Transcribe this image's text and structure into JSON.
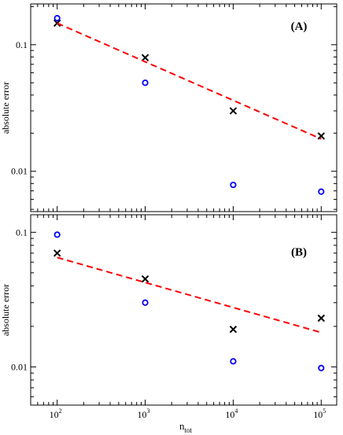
{
  "chart_data": [
    {
      "type": "scatter",
      "panel_label": "(A)",
      "xscale": "log",
      "yscale": "log",
      "xlim": [
        50,
        150000
      ],
      "ylim": [
        0.0048,
        0.21
      ],
      "ylabel": "absolute error",
      "xlabel": "",
      "xticks": [
        {
          "value": 100,
          "base": "10",
          "exp": "2"
        },
        {
          "value": 1000,
          "base": "10",
          "exp": "3"
        },
        {
          "value": 10000,
          "base": "10",
          "exp": "4"
        },
        {
          "value": 100000,
          "base": "10",
          "exp": "5"
        }
      ],
      "yticks": [
        {
          "value": 0.01,
          "label": "0.01"
        },
        {
          "value": 0.1,
          "label": "0.1"
        }
      ],
      "series": [
        {
          "marker": "x",
          "color": "#000000",
          "x": [
            100,
            1000,
            10000,
            100000
          ],
          "y": [
            0.148,
            0.079,
            0.03,
            0.019
          ]
        },
        {
          "marker": "o",
          "color": "#0000ff",
          "x": [
            100,
            1000,
            10000,
            100000
          ],
          "y": [
            0.162,
            0.05,
            0.0078,
            0.0069
          ]
        },
        {
          "marker": "dashed-line",
          "color": "#ff0000",
          "x": [
            100,
            100000
          ],
          "y": [
            0.148,
            0.018
          ]
        }
      ]
    },
    {
      "type": "scatter",
      "panel_label": "(B)",
      "xscale": "log",
      "yscale": "log",
      "xlim": [
        50,
        150000
      ],
      "ylim": [
        0.0052,
        0.135
      ],
      "ylabel": "absolute error",
      "xlabel_base": "n",
      "xlabel_sub": "tot",
      "xticks": [
        {
          "value": 100,
          "base": "10",
          "exp": "2"
        },
        {
          "value": 1000,
          "base": "10",
          "exp": "3"
        },
        {
          "value": 10000,
          "base": "10",
          "exp": "4"
        },
        {
          "value": 100000,
          "base": "10",
          "exp": "5"
        }
      ],
      "yticks": [
        {
          "value": 0.01,
          "label": "0.01"
        },
        {
          "value": 0.1,
          "label": "0.1"
        }
      ],
      "series": [
        {
          "marker": "x",
          "color": "#000000",
          "x": [
            100,
            1000,
            10000,
            100000
          ],
          "y": [
            0.07,
            0.045,
            0.019,
            0.023
          ]
        },
        {
          "marker": "o",
          "color": "#0000ff",
          "x": [
            100,
            1000,
            10000,
            100000
          ],
          "y": [
            0.096,
            0.03,
            0.011,
            0.0098
          ]
        },
        {
          "marker": "dashed-line",
          "color": "#ff0000",
          "x": [
            100,
            100000
          ],
          "y": [
            0.065,
            0.018
          ]
        }
      ]
    }
  ]
}
